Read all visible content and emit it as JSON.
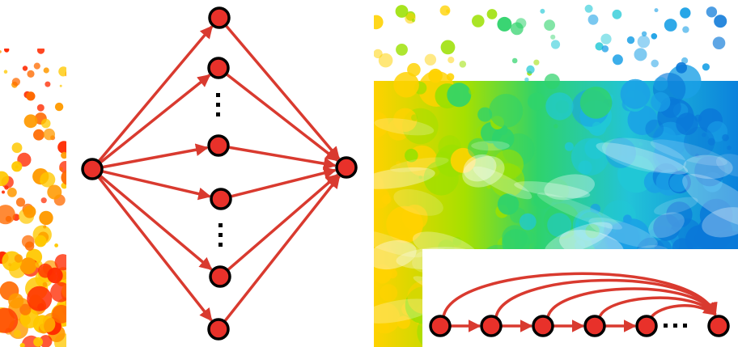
{
  "colors": {
    "node_fill": "#e8312a",
    "node_stroke": "#000000",
    "edge": "#d93a2f",
    "splash_warm": [
      "#ff2a00",
      "#ff6a00",
      "#ff9a00",
      "#ffc800"
    ],
    "splash_rainbow": [
      "#ffd200",
      "#9be000",
      "#2fd36b",
      "#20c8d6",
      "#1aa0e6",
      "#0a78d8"
    ]
  },
  "icons": {
    "ellipsis_mark": "vertical-ellipsis",
    "chain_ellipsis_mark": "horizontal-ellipsis"
  }
}
